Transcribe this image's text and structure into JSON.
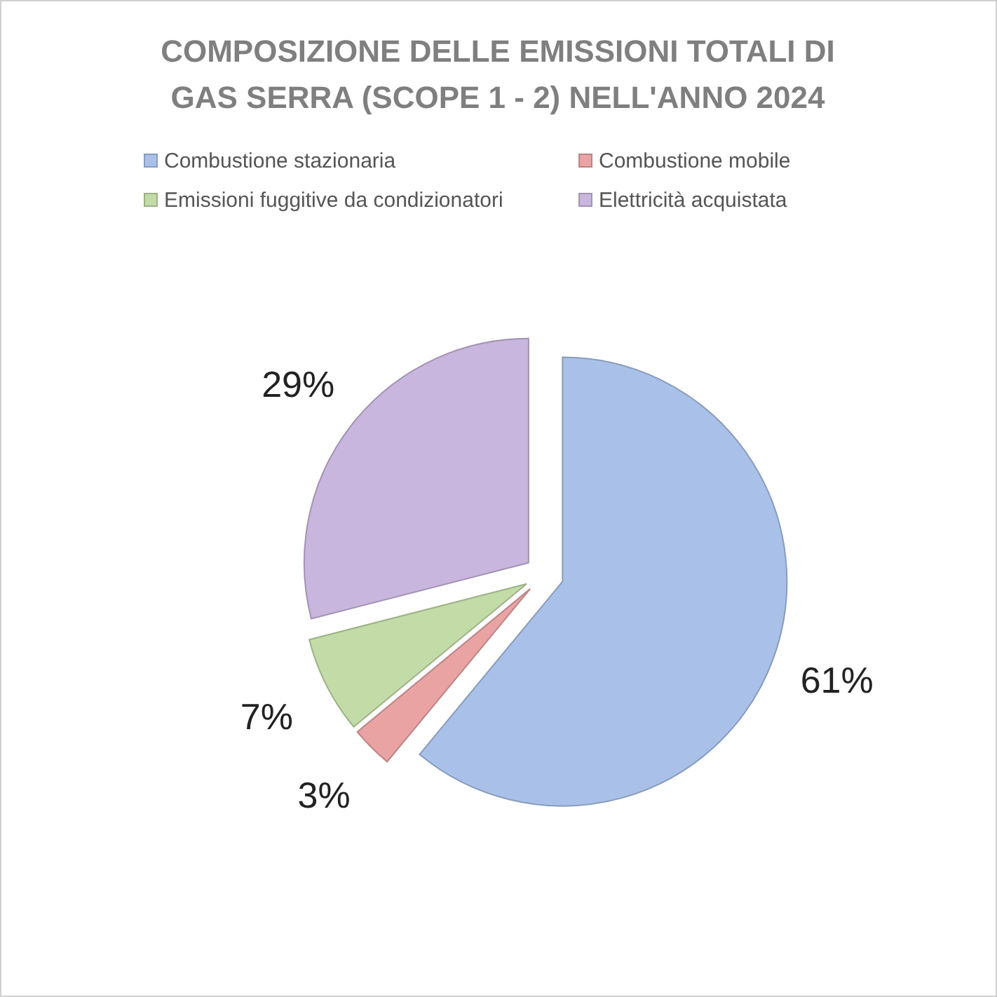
{
  "chart_data": {
    "type": "pie",
    "title": "COMPOSIZIONE DELLE EMISSIONI TOTALI DI GAS SERRA (SCOPE 1 - 2) NELL'ANNO 2024",
    "categories": [
      "Combustione stazionaria",
      "Combustione mobile",
      "Emissioni fuggitive da condizionatori",
      "Elettricità acquistata"
    ],
    "values": [
      61,
      3,
      7,
      29
    ],
    "colors": [
      "#a9c1e8",
      "#e9a3a3",
      "#c3dca7",
      "#c9b6de"
    ],
    "value_labels": [
      "61%",
      "3%",
      "7%",
      "29%"
    ],
    "legend": "top"
  }
}
